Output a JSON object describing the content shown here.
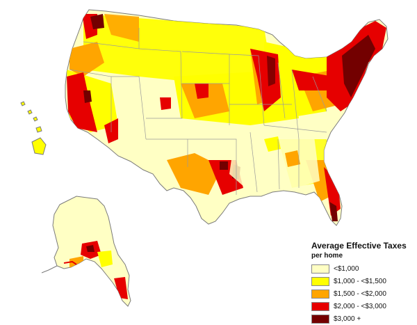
{
  "map": {
    "subject": "Average effective property taxes per home by county",
    "regions_shown": [
      "Contiguous United States",
      "Alaska",
      "Hawaii"
    ]
  },
  "legend": {
    "title": "Average Effective Taxes",
    "subtitle": "per home",
    "items": [
      {
        "label": "<$1,000",
        "color": "#ffffc4"
      },
      {
        "label": "$1,000 - <$1,500",
        "color": "#ffff00"
      },
      {
        "label": "$1,500 - <$2,000",
        "color": "#ffa500"
      },
      {
        "label": "$2,000 - <$3,000",
        "color": "#e60000"
      },
      {
        "label": "$3,000 +",
        "color": "#730000"
      }
    ]
  },
  "colors": {
    "border": "#7a7a7a",
    "state_line": "#9a9a9a",
    "background": "#ffffff"
  }
}
